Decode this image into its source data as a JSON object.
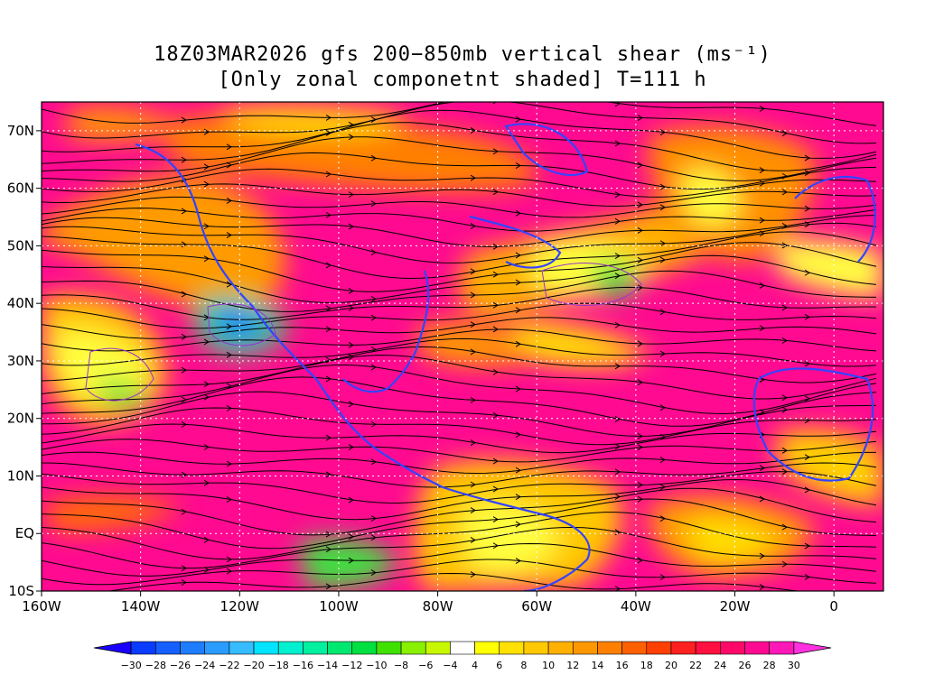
{
  "title": {
    "line1": "18Z03MAR2026 gfs 200−850mb vertical shear (ms⁻¹)",
    "line2": "[Only zonal componetnt shaded] T=111 h"
  },
  "map": {
    "region": "North and tropical Atlantic / Americas",
    "lon_range": [
      -160,
      10
    ],
    "lat_range": [
      -10,
      75
    ],
    "x_ticks": [
      "160W",
      "140W",
      "120W",
      "100W",
      "80W",
      "60W",
      "40W",
      "20W",
      "0"
    ],
    "x_tick_values": [
      -160,
      -140,
      -120,
      -100,
      -80,
      -60,
      -40,
      -20,
      0
    ],
    "y_ticks": [
      "70N",
      "60N",
      "50N",
      "40N",
      "30N",
      "20N",
      "10N",
      "EQ",
      "10S"
    ],
    "y_tick_values": [
      70,
      60,
      50,
      40,
      30,
      20,
      10,
      0,
      -10
    ],
    "shading": "zonal component of 200-850mb vertical shear",
    "overlay": "shear streamlines",
    "coastline_color": "#3344ff",
    "contour_color": "#9933cc"
  },
  "colorbar": {
    "labels": [
      "-30",
      "-28",
      "-26",
      "-24",
      "-22",
      "-20",
      "-18",
      "-16",
      "-14",
      "-12",
      "-10",
      "-8",
      "-6",
      "-4",
      "4",
      "6",
      "8",
      "10",
      "12",
      "14",
      "16",
      "18",
      "20",
      "22",
      "24",
      "26",
      "28",
      "30"
    ],
    "colors": [
      "#1a00ff",
      "#0a3cff",
      "#1560ff",
      "#1e7cff",
      "#2a9cff",
      "#36bcff",
      "#00e4ff",
      "#00f0d0",
      "#00f0a0",
      "#00e870",
      "#00e040",
      "#40e000",
      "#88f000",
      "#c8f800",
      "#ffffff",
      "#ffff00",
      "#ffe000",
      "#ffc800",
      "#ffb000",
      "#ff9800",
      "#ff8000",
      "#ff6000",
      "#ff4000",
      "#ff2020",
      "#ff1040",
      "#ff0868",
      "#ff0a90",
      "#ff18b8",
      "#ff30e0"
    ]
  }
}
